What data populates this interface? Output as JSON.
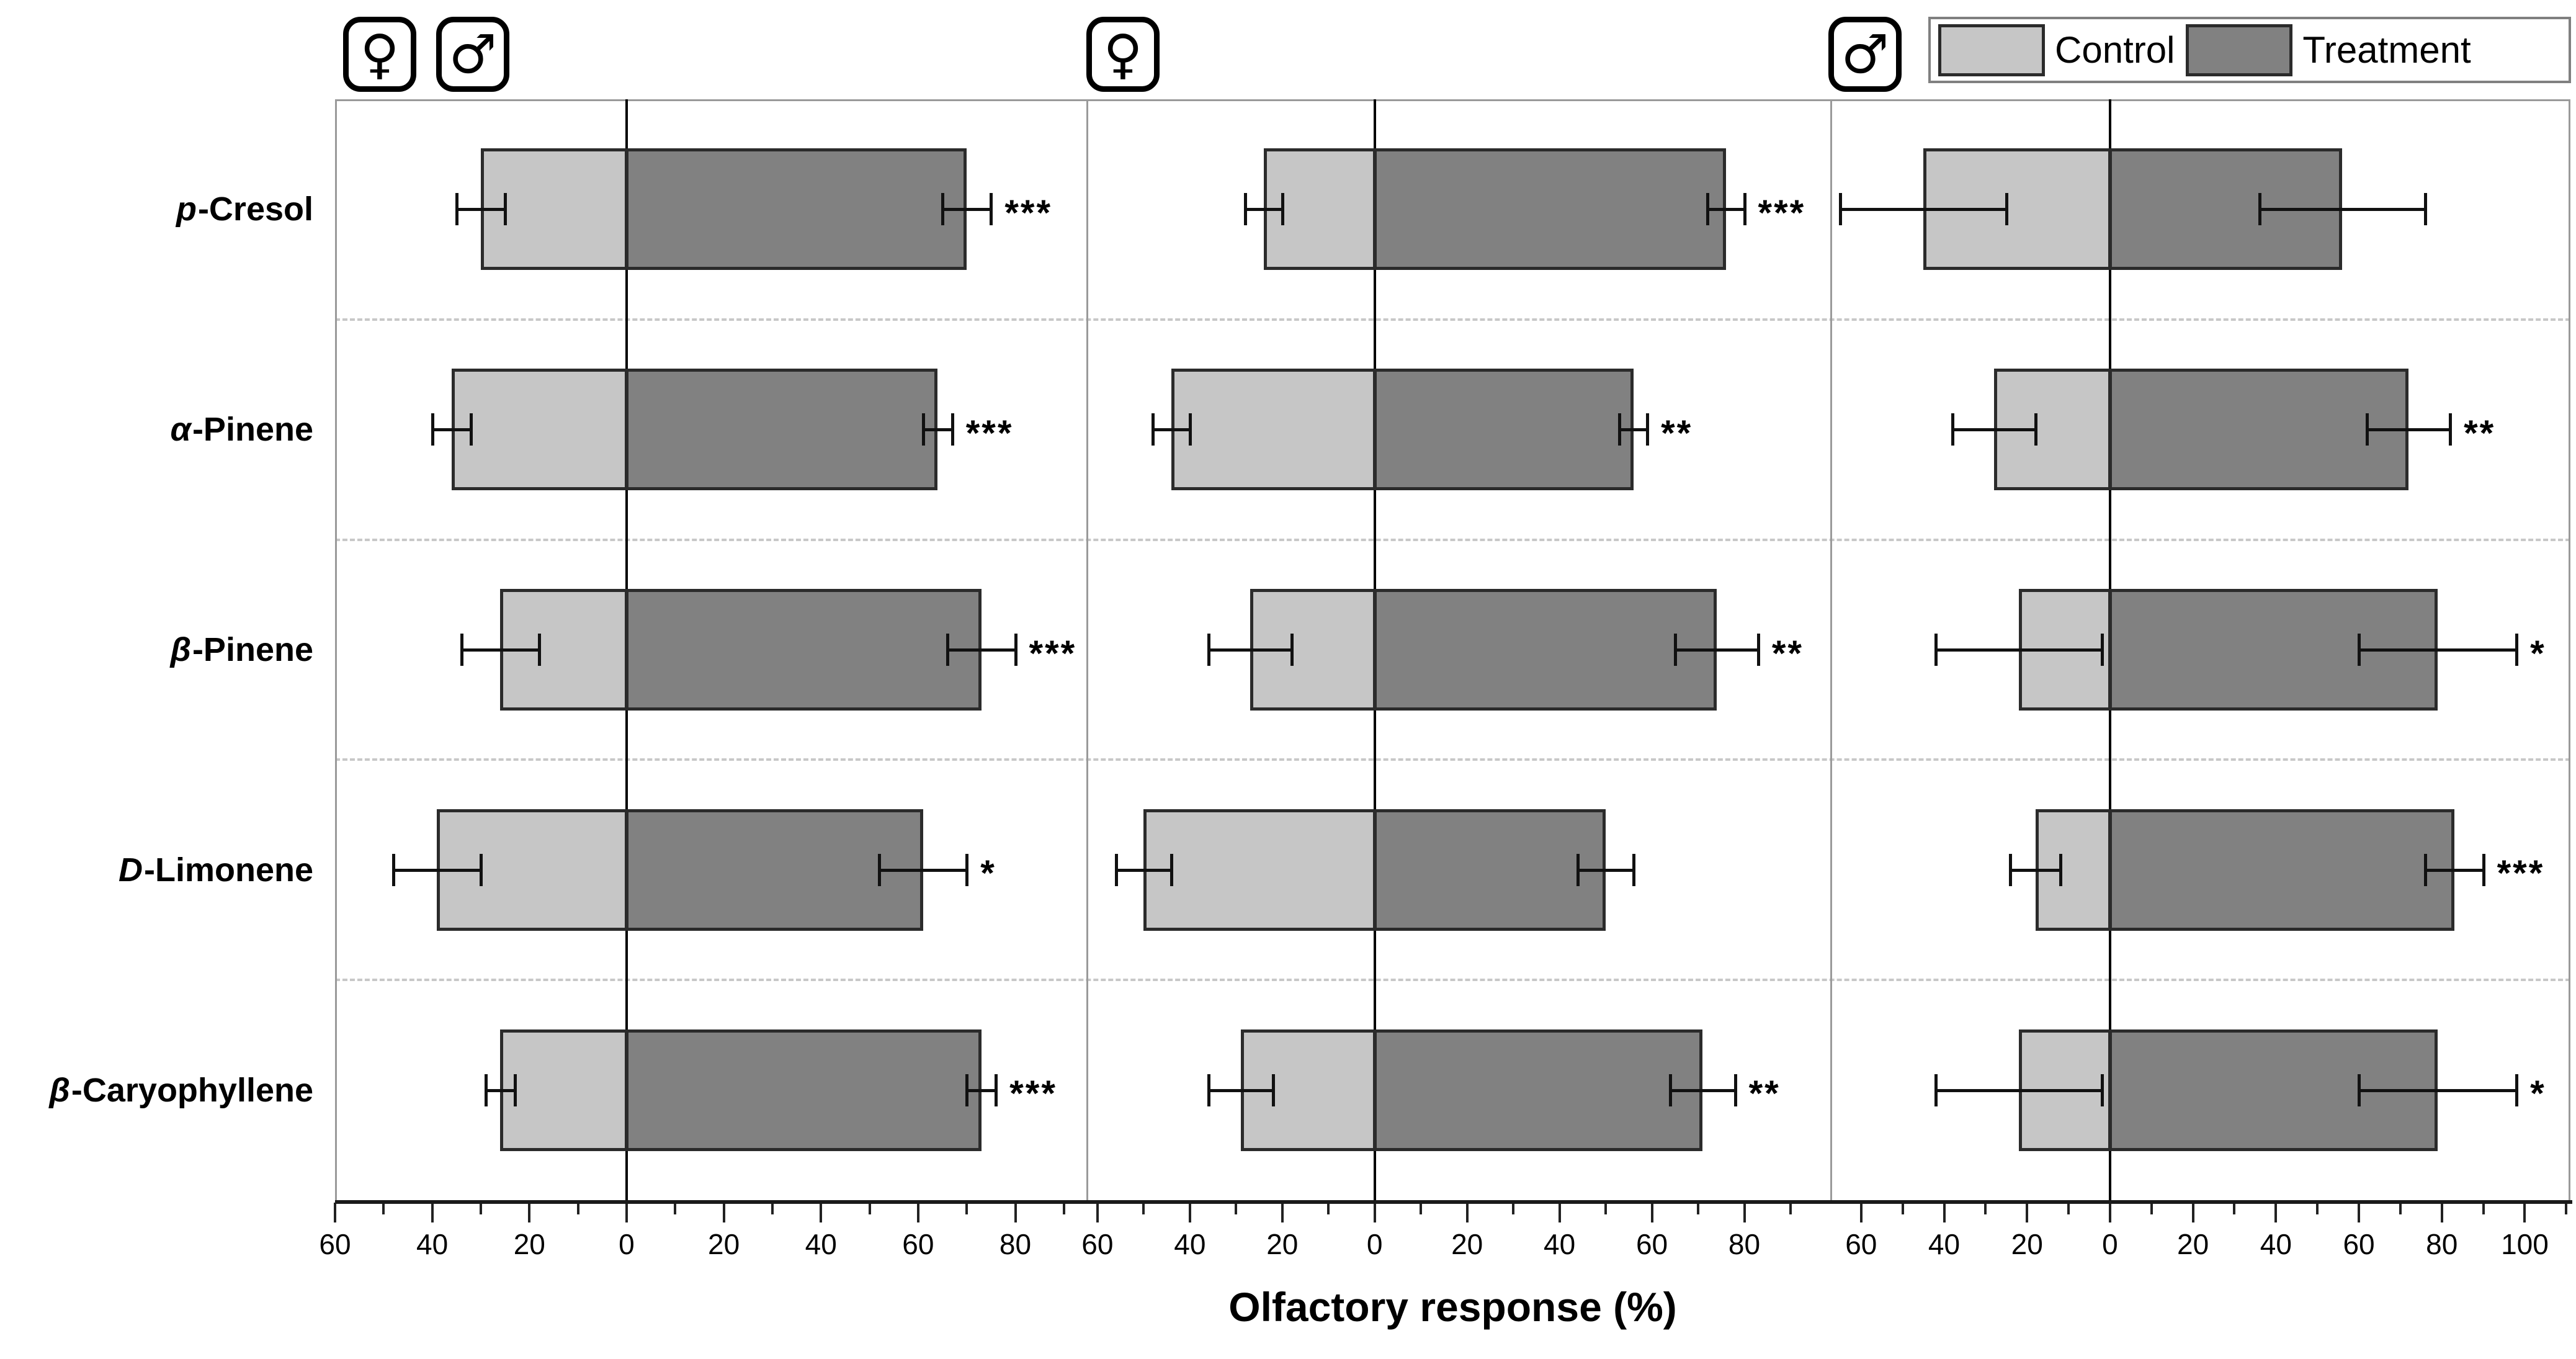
{
  "axis_title": "Olfactory response (%)",
  "legend": {
    "control_label": "Control",
    "treatment_label": "Treatment"
  },
  "icons": {
    "female": "♀",
    "male": "♂"
  },
  "colors": {
    "control": "#c6c6c6",
    "treatment": "#818181",
    "bar_border": "#2b2b2b",
    "zero_line": "#000000",
    "frame": "#9a9a9a",
    "separator": "#c8c8c8"
  },
  "chart_data": {
    "type": "bar",
    "orientation": "horizontal_diverging",
    "title": "",
    "xlabel": "Olfactory response (%)",
    "ylabel": "",
    "grid": false,
    "legend_position": "top-right",
    "series_legend": [
      "Control",
      "Treatment"
    ],
    "categories": [
      {
        "italic": "p",
        "rest": "-Cresol",
        "full": "p-Cresol"
      },
      {
        "italic": "α",
        "rest": "-Pinene",
        "full": "α-Pinene"
      },
      {
        "italic": "β",
        "rest": "-Pinene",
        "full": "β-Pinene"
      },
      {
        "italic": "D",
        "rest": "-Limonene",
        "full": "D-Limonene"
      },
      {
        "italic": "β",
        "rest": "-Caryophyllene",
        "full": "β-Caryophyllene"
      }
    ],
    "panels": [
      {
        "id": "both-sexes",
        "icons": [
          "female",
          "male"
        ],
        "axis": {
          "min": -60,
          "max": 95,
          "minor_step": 10,
          "major_tick_values": [
            -60,
            -40,
            -20,
            0,
            20,
            40,
            60,
            80
          ],
          "major_tick_labels": [
            "60",
            "40",
            "20",
            "0",
            "20",
            "40",
            "60",
            "80"
          ]
        },
        "rows": [
          {
            "control": {
              "value": 30,
              "error": 5
            },
            "treatment": {
              "value": 70,
              "error": 5
            },
            "significance": "***"
          },
          {
            "control": {
              "value": 36,
              "error": 4
            },
            "treatment": {
              "value": 64,
              "error": 3
            },
            "significance": "***"
          },
          {
            "control": {
              "value": 26,
              "error": 8
            },
            "treatment": {
              "value": 73,
              "error": 7
            },
            "significance": "***"
          },
          {
            "control": {
              "value": 39,
              "error": 9
            },
            "treatment": {
              "value": 61,
              "error": 9
            },
            "significance": "*"
          },
          {
            "control": {
              "value": 26,
              "error": 3
            },
            "treatment": {
              "value": 73,
              "error": 3
            },
            "significance": "***"
          }
        ]
      },
      {
        "id": "female",
        "icons": [
          "female"
        ],
        "axis": {
          "min": -62,
          "max": 99,
          "minor_step": 10,
          "major_tick_values": [
            -60,
            -40,
            -20,
            0,
            20,
            40,
            60,
            80
          ],
          "major_tick_labels": [
            "60",
            "40",
            "20",
            "0",
            "20",
            "40",
            "60",
            "80"
          ]
        },
        "rows": [
          {
            "control": {
              "value": 24,
              "error": 4
            },
            "treatment": {
              "value": 76,
              "error": 4
            },
            "significance": "***"
          },
          {
            "control": {
              "value": 44,
              "error": 4
            },
            "treatment": {
              "value": 56,
              "error": 3
            },
            "significance": "**"
          },
          {
            "control": {
              "value": 27,
              "error": 9
            },
            "treatment": {
              "value": 74,
              "error": 9
            },
            "significance": "**"
          },
          {
            "control": {
              "value": 50,
              "error": 6
            },
            "treatment": {
              "value": 50,
              "error": 6
            },
            "significance": ""
          },
          {
            "control": {
              "value": 29,
              "error": 7
            },
            "treatment": {
              "value": 71,
              "error": 7
            },
            "significance": "**"
          }
        ]
      },
      {
        "id": "male",
        "icons": [
          "male"
        ],
        "axis": {
          "min": -67,
          "max": 111,
          "minor_step": 10,
          "major_tick_values": [
            -60,
            -40,
            -20,
            0,
            20,
            40,
            60,
            80,
            100
          ],
          "major_tick_labels": [
            "60",
            "40",
            "20",
            "0",
            "20",
            "40",
            "60",
            "80",
            "100"
          ]
        },
        "rows": [
          {
            "control": {
              "value": 45,
              "error": 20
            },
            "treatment": {
              "value": 56,
              "error": 20
            },
            "significance": ""
          },
          {
            "control": {
              "value": 28,
              "error": 10
            },
            "treatment": {
              "value": 72,
              "error": 10
            },
            "significance": "**"
          },
          {
            "control": {
              "value": 22,
              "error": 20
            },
            "treatment": {
              "value": 79,
              "error": 19
            },
            "significance": "*"
          },
          {
            "control": {
              "value": 18,
              "error": 6
            },
            "treatment": {
              "value": 83,
              "error": 7
            },
            "significance": "***"
          },
          {
            "control": {
              "value": 22,
              "error": 20
            },
            "treatment": {
              "value": 79,
              "error": 19
            },
            "significance": "*"
          }
        ]
      }
    ]
  }
}
